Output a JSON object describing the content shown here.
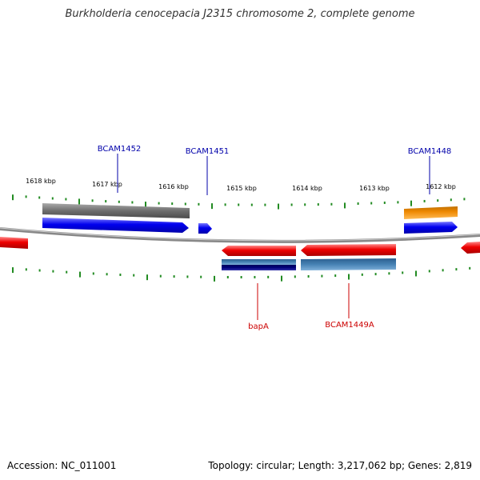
{
  "title": "Burkholderia cenocepacia J2315 chromosome 2, complete genome",
  "footer": {
    "accession": "Accession: NC_011001",
    "summary": "Topology: circular; Length: 3,217,062 bp; Genes: 2,819"
  },
  "ruler": {
    "labels": [
      "1618 kbp",
      "1617 kbp",
      "1616 kbp",
      "1615 kbp",
      "1614 kbp",
      "1613 kbp",
      "1612 kbp"
    ]
  },
  "features": {
    "forward_labels": [
      "BCAM1452",
      "BCAM1451",
      "BCAM1448"
    ],
    "reverse_labels": [
      "bapA",
      "BCAM1449A"
    ]
  },
  "colors": {
    "forward_gene": "#0000ee",
    "reverse_gene": "#ee0000",
    "forward_label": "#0000aa",
    "reverse_label": "#cc0000",
    "tick": "#228b22",
    "backbone": "#777777",
    "grey_cds": "#6e6e6e",
    "orange_cds": "#ee8800",
    "steel_cds": "#4682b4",
    "navy_cds": "#00007a"
  }
}
